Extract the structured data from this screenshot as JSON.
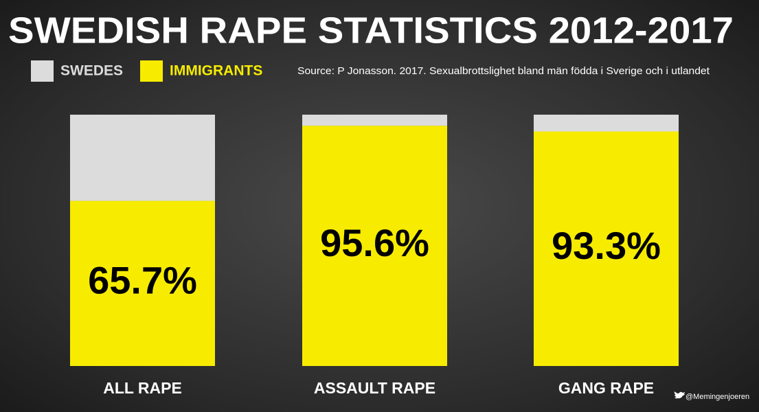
{
  "chart_data": {
    "type": "stacked_bar",
    "title": "SWEDISH RAPE STATISTICS 2012-2017",
    "source": "Source: P Jonasson. 2017. Sexualbrottslighet bland män födda i Sverige och i utlandet",
    "credit": "@Memingenjoeren",
    "categories": [
      "ALL RAPE",
      "ASSAULT RAPE",
      "GANG RAPE"
    ],
    "series": [
      {
        "name": "SWEDES",
        "color": "#dcdcdc",
        "values": [
          34.3,
          4.4,
          6.7
        ]
      },
      {
        "name": "IMMIGRANTS",
        "color": "#f7ec00",
        "values": [
          65.7,
          95.6,
          93.3
        ],
        "value_labels": [
          "65.7%",
          "95.6%",
          "93.3%"
        ]
      }
    ],
    "ylim": [
      0,
      100
    ]
  }
}
